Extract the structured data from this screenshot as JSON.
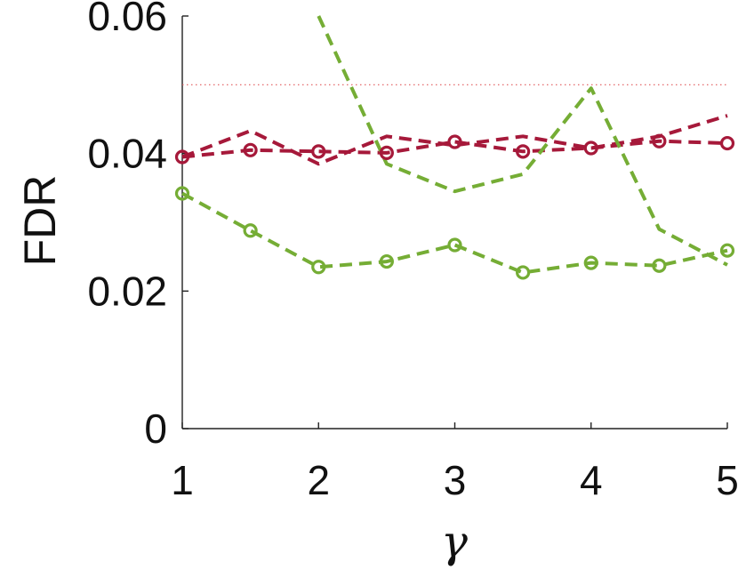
{
  "chart_data": {
    "type": "line",
    "xlabel": "γ",
    "ylabel": "FDR",
    "xlim": [
      1,
      5
    ],
    "ylim": [
      0,
      0.06
    ],
    "xticks": [
      1,
      2,
      3,
      4,
      5
    ],
    "xtick_labels": [
      "1",
      "2",
      "3",
      "4",
      "5"
    ],
    "yticks": [
      0,
      0.02,
      0.04,
      0.06
    ],
    "ytick_labels": [
      "0",
      "0.02",
      "0.04",
      "0.06"
    ],
    "grid": false,
    "reference_line": {
      "y": 0.05,
      "style": "dotted",
      "color": "#e0585a"
    },
    "series": [
      {
        "color": "#a6193a",
        "style": "dashed",
        "marker": "none",
        "x": [
          1,
          1.5,
          2,
          2.5,
          3,
          3.5,
          4,
          4.5,
          5
        ],
        "y": [
          0.0395,
          0.0433,
          0.0385,
          0.0425,
          0.0412,
          0.0425,
          0.0408,
          0.0425,
          0.0455
        ]
      },
      {
        "color": "#a6193a",
        "style": "dashed",
        "marker": "circle",
        "x": [
          1,
          1.5,
          2,
          2.5,
          3,
          3.5,
          4,
          4.5,
          5
        ],
        "y": [
          0.0395,
          0.0405,
          0.0403,
          0.0401,
          0.0417,
          0.0403,
          0.0408,
          0.0418,
          0.0415
        ]
      },
      {
        "color": "#75ad35",
        "style": "dashed",
        "marker": "none",
        "x": [
          2,
          2.5,
          3,
          3.5,
          4,
          4.5,
          5
        ],
        "y": [
          0.06,
          0.0385,
          0.0345,
          0.037,
          0.0495,
          0.029,
          0.0238
        ]
      },
      {
        "color": "#75ad35",
        "style": "dashed",
        "marker": "circle",
        "x": [
          1,
          1.5,
          2,
          2.5,
          3,
          3.5,
          4,
          4.5,
          5
        ],
        "y": [
          0.0342,
          0.0288,
          0.0235,
          0.0243,
          0.0267,
          0.0227,
          0.0241,
          0.0237,
          0.0259
        ]
      }
    ]
  }
}
